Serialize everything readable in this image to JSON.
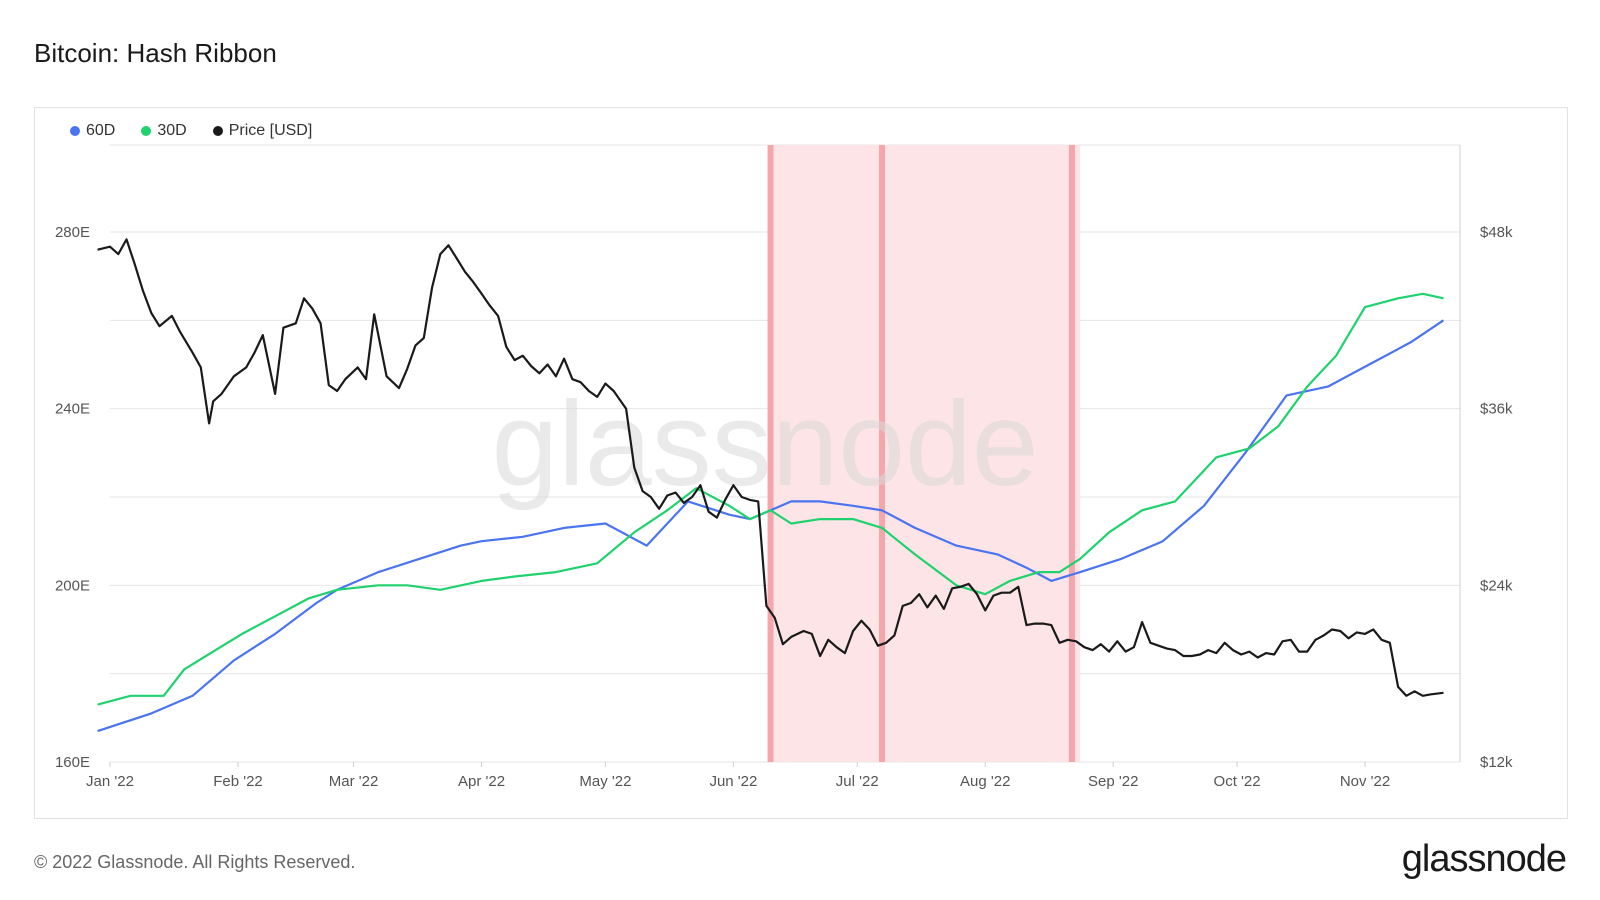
{
  "title": "Bitcoin: Hash Ribbon",
  "footer": "© 2022 Glassnode. All Rights Reserved.",
  "brand": "glassnode",
  "watermark": "glassnode",
  "colors": {
    "s60": "#4a74f0",
    "s30": "#1fd26e",
    "price": "#1a1a1a",
    "band": "#fde4e6",
    "bandLine": "#f4a6aa",
    "grid": "#e6e6e6"
  },
  "chart_data": {
    "type": "line",
    "legend_position": "top-left",
    "grid": true,
    "x_range": [
      0,
      327
    ],
    "x_unit": "days since 2022-01-01",
    "x_ticks": [
      {
        "label": "Jan '22",
        "day": 0
      },
      {
        "label": "Feb '22",
        "day": 31
      },
      {
        "label": "Mar '22",
        "day": 59
      },
      {
        "label": "Apr '22",
        "day": 90
      },
      {
        "label": "May '22",
        "day": 120
      },
      {
        "label": "Jun '22",
        "day": 151
      },
      {
        "label": "Jul '22",
        "day": 181
      },
      {
        "label": "Aug '22",
        "day": 212
      },
      {
        "label": "Sep '22",
        "day": 243
      },
      {
        "label": "Oct '22",
        "day": 273
      },
      {
        "label": "Nov '22",
        "day": 304
      }
    ],
    "y_left": {
      "min": 160,
      "max": 280,
      "ticks": [
        {
          "v": 160,
          "label": "160E"
        },
        {
          "v": 200,
          "label": "200E"
        },
        {
          "v": 240,
          "label": "240E"
        },
        {
          "v": 280,
          "label": "280E"
        }
      ]
    },
    "y_right": {
      "min": 12000,
      "max": 48000,
      "ticks": [
        {
          "v": 12000,
          "label": "$12k"
        },
        {
          "v": 24000,
          "label": "$24k"
        },
        {
          "v": 36000,
          "label": "$36k"
        },
        {
          "v": 48000,
          "label": "$48k"
        }
      ]
    },
    "capitulation_bands": [
      [
        160,
        188
      ],
      [
        188,
        235
      ]
    ],
    "capitulation_lines": [
      160,
      187,
      233
    ],
    "series": [
      {
        "name": "60D",
        "axis": "left",
        "color": "#4a74f0",
        "x": [
          -3,
          10,
          20,
          30,
          40,
          50,
          55,
          65,
          75,
          85,
          90,
          100,
          110,
          120,
          130,
          140,
          150,
          155,
          160,
          165,
          172,
          180,
          187,
          195,
          205,
          215,
          222,
          228,
          235,
          245,
          255,
          265,
          275,
          285,
          295,
          305,
          315,
          323
        ],
        "y": [
          167,
          171,
          175,
          183,
          189,
          196,
          199,
          203,
          206,
          209,
          210,
          211,
          213,
          214,
          209,
          219,
          216,
          215,
          217,
          219,
          219,
          218,
          217,
          213,
          209,
          207,
          204,
          201,
          203,
          206,
          210,
          218,
          230,
          243,
          245,
          250,
          255,
          260
        ]
      },
      {
        "name": "30D",
        "axis": "left",
        "color": "#1fd26e",
        "x": [
          -3,
          5,
          13,
          18,
          25,
          32,
          40,
          48,
          55,
          65,
          72,
          80,
          90,
          98,
          108,
          118,
          127,
          135,
          142,
          150,
          155,
          160,
          165,
          172,
          180,
          187,
          195,
          205,
          212,
          218,
          225,
          230,
          235,
          242,
          250,
          258,
          268,
          276,
          283,
          290,
          297,
          304,
          312,
          318,
          323
        ],
        "y": [
          173,
          175,
          175,
          181,
          185,
          189,
          193,
          197,
          199,
          200,
          200,
          199,
          201,
          202,
          203,
          205,
          212,
          217,
          222,
          218,
          215,
          217,
          214,
          215,
          215,
          213,
          207,
          200,
          198,
          201,
          203,
          203,
          206,
          212,
          217,
          219,
          229,
          231,
          236,
          245,
          252,
          263,
          265,
          266,
          265
        ]
      },
      {
        "name": "Price [USD]",
        "axis": "right",
        "color": "#1a1a1a",
        "x": [
          -3,
          0,
          2,
          4,
          6,
          8,
          10,
          12,
          15,
          17,
          20,
          22,
          24,
          25,
          27,
          30,
          32,
          33,
          35,
          37,
          40,
          42,
          45,
          47,
          49,
          51,
          53,
          55,
          57,
          60,
          62,
          64,
          67,
          70,
          72,
          74,
          76,
          78,
          80,
          82,
          84,
          86,
          88,
          90,
          92,
          94,
          96,
          98,
          100,
          102,
          104,
          106,
          108,
          110,
          112,
          114,
          116,
          118,
          120,
          122,
          125,
          127,
          129,
          131,
          133,
          135,
          137,
          139,
          141,
          143,
          145,
          147,
          149,
          151,
          153,
          155,
          157,
          159,
          161,
          163,
          165,
          168,
          170,
          172,
          174,
          176,
          178,
          180,
          182,
          184,
          186,
          188,
          190,
          192,
          194,
          196,
          198,
          200,
          202,
          204,
          206,
          208,
          210,
          212,
          214,
          216,
          218,
          220,
          222,
          224,
          226,
          228,
          230,
          232,
          234,
          236,
          238,
          240,
          242,
          244,
          246,
          248,
          250,
          252,
          254,
          256,
          258,
          260,
          262,
          264,
          266,
          268,
          270,
          272,
          274,
          276,
          278,
          280,
          282,
          284,
          286,
          288,
          290,
          292,
          294,
          296,
          298,
          300,
          302,
          304,
          306,
          308,
          310,
          312,
          314,
          316,
          318,
          320,
          323
        ],
        "y": [
          46800,
          47000,
          46500,
          47500,
          45800,
          44000,
          42500,
          41600,
          42300,
          41200,
          39800,
          38800,
          35000,
          36500,
          37000,
          38200,
          38600,
          38800,
          39800,
          41000,
          37000,
          41500,
          41800,
          43500,
          42800,
          41800,
          37600,
          37200,
          38000,
          38800,
          38000,
          42400,
          38200,
          37400,
          38700,
          40300,
          40800,
          44200,
          46500,
          47100,
          46200,
          45300,
          44600,
          43800,
          43000,
          42300,
          40200,
          39300,
          39600,
          38900,
          38400,
          39000,
          38200,
          39400,
          38000,
          37800,
          37200,
          36800,
          37700,
          37200,
          36000,
          32000,
          30400,
          30000,
          29200,
          30100,
          30300,
          29600,
          30000,
          30800,
          29000,
          28600,
          29800,
          30800,
          30000,
          29800,
          29700,
          22600,
          21800,
          20000,
          20500,
          20900,
          20700,
          19200,
          20300,
          19800,
          19400,
          20900,
          21600,
          21000,
          19900,
          20100,
          20600,
          22600,
          22800,
          23400,
          22500,
          23300,
          22400,
          23800,
          23900,
          24100,
          23400,
          22300,
          23300,
          23500,
          23500,
          23900,
          21300,
          21400,
          21400,
          21300,
          20100,
          20300,
          20200,
          19800,
          19600,
          20000,
          19500,
          20200,
          19500,
          19800,
          21500,
          20100,
          19900,
          19700,
          19600,
          19200,
          19200,
          19300,
          19600,
          19400,
          20100,
          19600,
          19300,
          19500,
          19100,
          19400,
          19300,
          20200,
          20300,
          19500,
          19500,
          20300,
          20600,
          21000,
          20900,
          20400,
          20800,
          20700,
          21000,
          20300,
          20100,
          17100,
          16500,
          16800,
          16500,
          16600,
          16700
        ]
      }
    ]
  }
}
